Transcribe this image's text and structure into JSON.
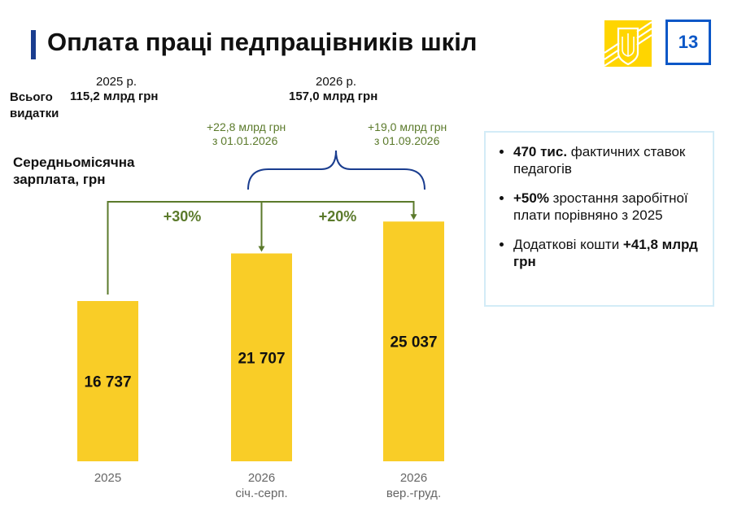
{
  "title": "Оплата праці педпрацівників шкіл",
  "page_number": "13",
  "logo": "ukraine-trident-emblem",
  "totals": {
    "label": "Всього видатки",
    "y2025": {
      "year": "2025 р.",
      "amount": "115,2 млрд грн"
    },
    "y2026": {
      "year": "2026 р.",
      "amount": "157,0 млрд грн"
    },
    "add1": {
      "amount": "+22,8 млрд грн",
      "date": "з 01.01.2026"
    },
    "add2": {
      "amount": "+19,0 млрд грн",
      "date": "з 01.09.2026"
    }
  },
  "info_box": {
    "items": [
      {
        "bold": "470 тис.",
        "text": " фактичних ставок педагогів"
      },
      {
        "bold": "+50%",
        "text": " зростання заробітної плати порівняно з 2025"
      },
      {
        "text": "Додаткові кошти ",
        "bold": "+41,8 млрд грн"
      }
    ]
  },
  "colors": {
    "bar": "#f9cd27",
    "accent": "#1a3d8f",
    "green": "#5b7a2b"
  },
  "chart_data": {
    "type": "bar",
    "ylabel": "Середньомісячна зарплата, грн",
    "categories": [
      [
        "2025"
      ],
      [
        "2026",
        "січ.-серп."
      ],
      [
        "2026",
        "вер.-груд."
      ]
    ],
    "values": [
      16737,
      21707,
      25037
    ],
    "data_labels": [
      "16 737",
      "21 707",
      "25 037"
    ],
    "growth": [
      {
        "from": 0,
        "to": 1,
        "label": "+30%"
      },
      {
        "from": 1,
        "to": 2,
        "label": "+20%"
      }
    ],
    "grid": false
  }
}
